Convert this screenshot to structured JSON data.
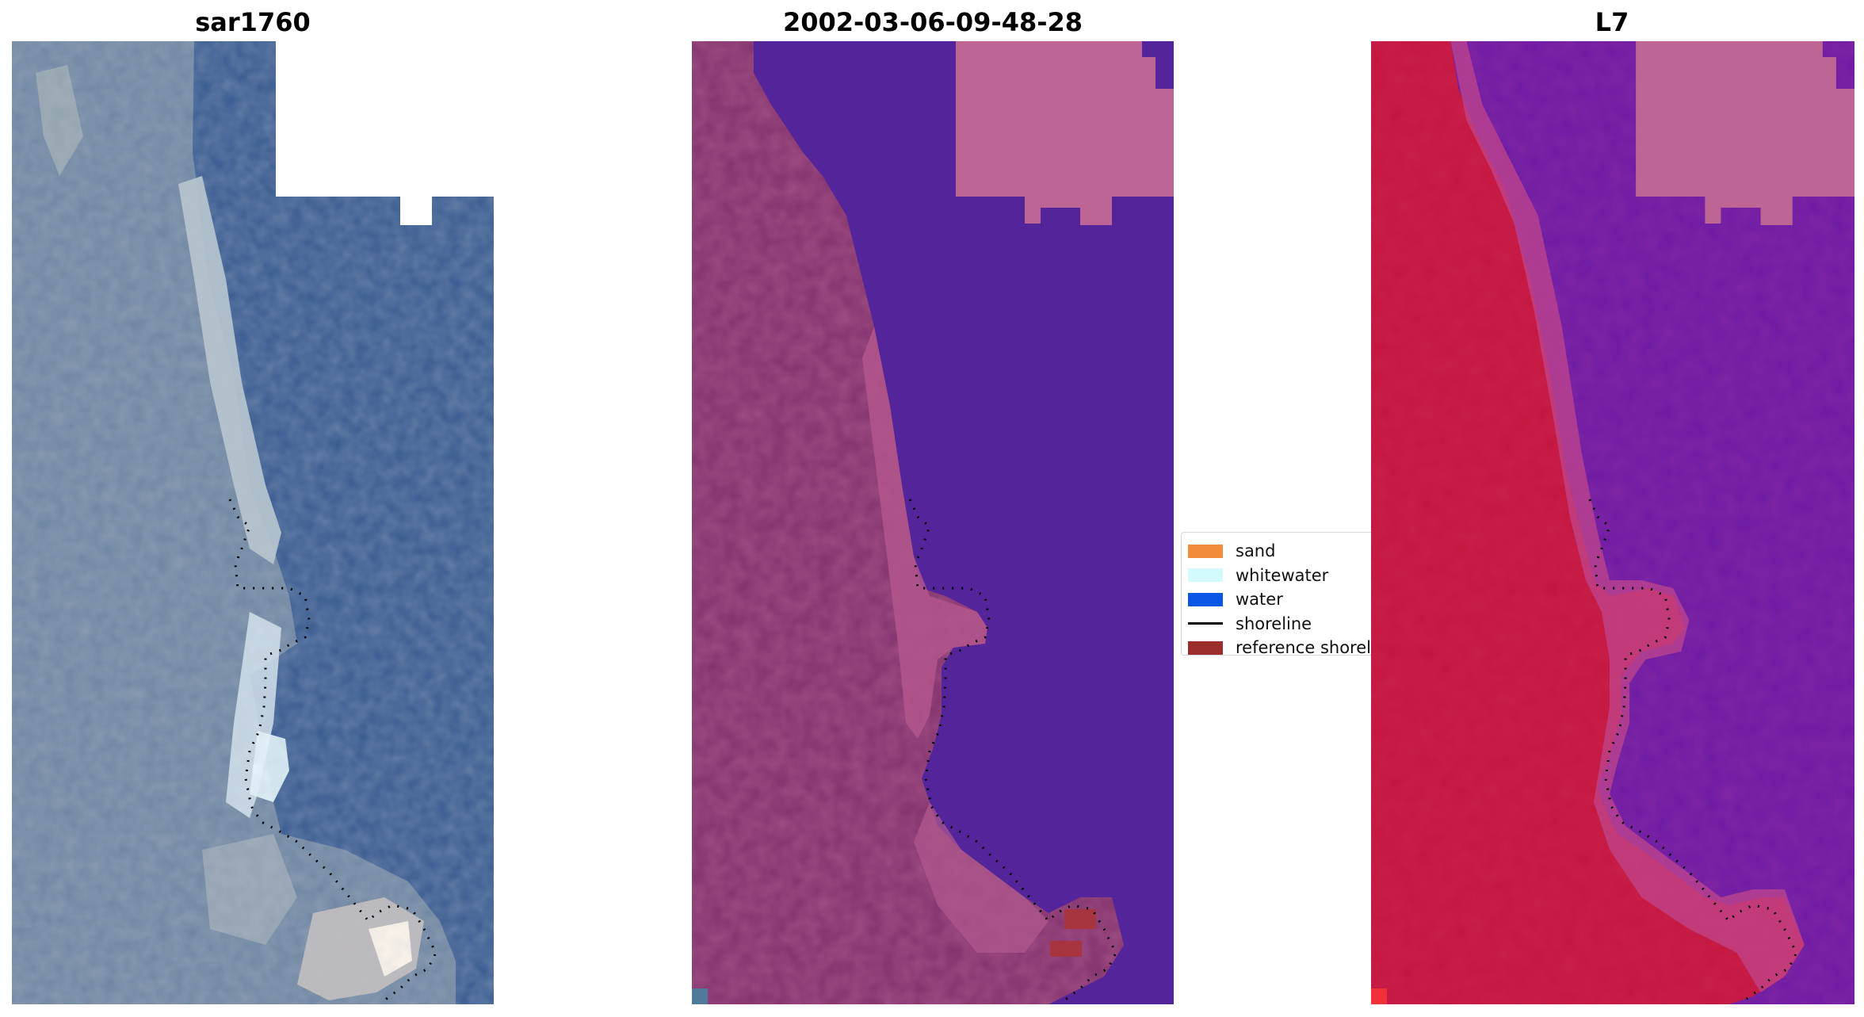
{
  "panels": [
    {
      "id": "rgb",
      "title": "sar1760"
    },
    {
      "id": "classified",
      "title": "2002-03-06-09-48-28"
    },
    {
      "id": "index",
      "title": "L7"
    }
  ],
  "legend": {
    "items": [
      {
        "label": "sand",
        "color": "#f28b3a",
        "kind": "patch"
      },
      {
        "label": "whitewater",
        "color": "#d4fbfb",
        "kind": "patch"
      },
      {
        "label": "water",
        "color": "#0a57e6",
        "kind": "patch"
      },
      {
        "label": "shoreline",
        "color": "#000000",
        "kind": "line"
      },
      {
        "label": "reference shoreline",
        "color": "#9b2d2d",
        "kind": "patch"
      }
    ]
  },
  "colors": {
    "water_rgb": "#33599a",
    "land_rgb": "#6f86a1",
    "water_class": "#54249a",
    "land_class": "#80306b",
    "nodata_class": "#bd6696",
    "water_index": "#6c1ba4",
    "land_index": "#c4163e",
    "nodata_index": "#bd6696"
  }
}
